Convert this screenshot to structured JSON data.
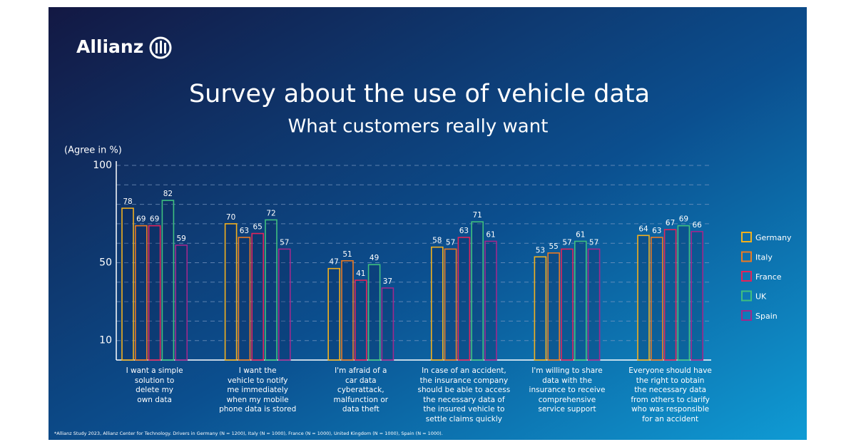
{
  "brand": "Allianz",
  "chart_data": {
    "type": "bar",
    "title": "Survey about the use of vehicle data",
    "subtitle": "What customers really want",
    "y_label": "(Agree in %)",
    "categories": [
      "I want a simple\nsolution to\ndelete my\nown data",
      "I want the\nvehicle to notify\nme immediately\nwhen my mobile\nphone data is stored",
      "I'm afraid of a\ncar data\ncyberattack,\nmalfunction or\ndata theft",
      "In case of an accident,\nthe insurance company\nshould be able to access\nthe necessary data of\nthe insured vehicle to\nsettle claims quickly",
      "I'm willing to share\ndata with the\ninsurance to receive\ncomprehensive\nservice support",
      "Everyone should have\nthe right to obtain\nthe necessary data\nfrom others to clarify\nwho was responsible\nfor an accident"
    ],
    "series": [
      {
        "name": "Germany",
        "color": "#f2b01e",
        "values": [
          78,
          70,
          47,
          58,
          53,
          64
        ]
      },
      {
        "name": "Italy",
        "color": "#ec7a22",
        "values": [
          69,
          63,
          51,
          57,
          55,
          63
        ]
      },
      {
        "name": "France",
        "color": "#e2245a",
        "values": [
          69,
          65,
          41,
          63,
          57,
          67
        ]
      },
      {
        "name": "UK",
        "color": "#3fbf7f",
        "values": [
          82,
          72,
          49,
          71,
          61,
          69
        ]
      },
      {
        "name": "Spain",
        "color": "#a0288c",
        "values": [
          59,
          57,
          37,
          61,
          57,
          66
        ]
      }
    ],
    "ylim": [
      0,
      100
    ],
    "yticks": [
      10,
      50,
      100
    ],
    "minor_yticks": [
      20,
      30,
      40,
      60,
      70,
      80,
      90
    ],
    "grid": true,
    "legend": "right",
    "footnote": "*Allianz Study 2023, Allianz Center for Technology. Drivers in Germany (N = 1200),  Italy (N = 1000), France (N = 1000), United Kingdom (N = 1000), Spain (N = 1000)."
  }
}
